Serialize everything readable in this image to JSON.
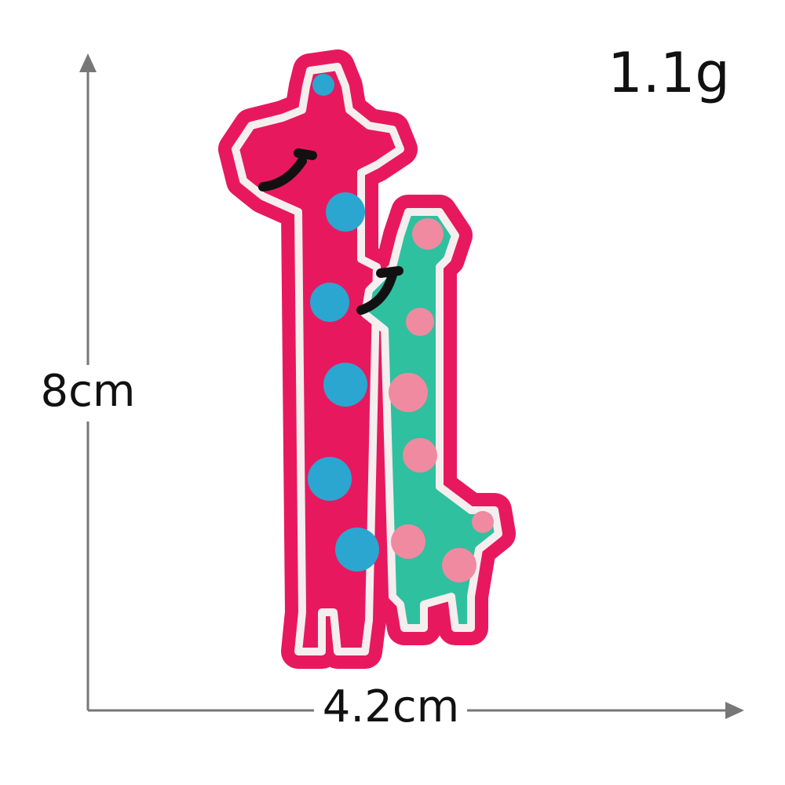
{
  "weight": "1.1g",
  "height": "8cm",
  "width": "4.2cm"
}
